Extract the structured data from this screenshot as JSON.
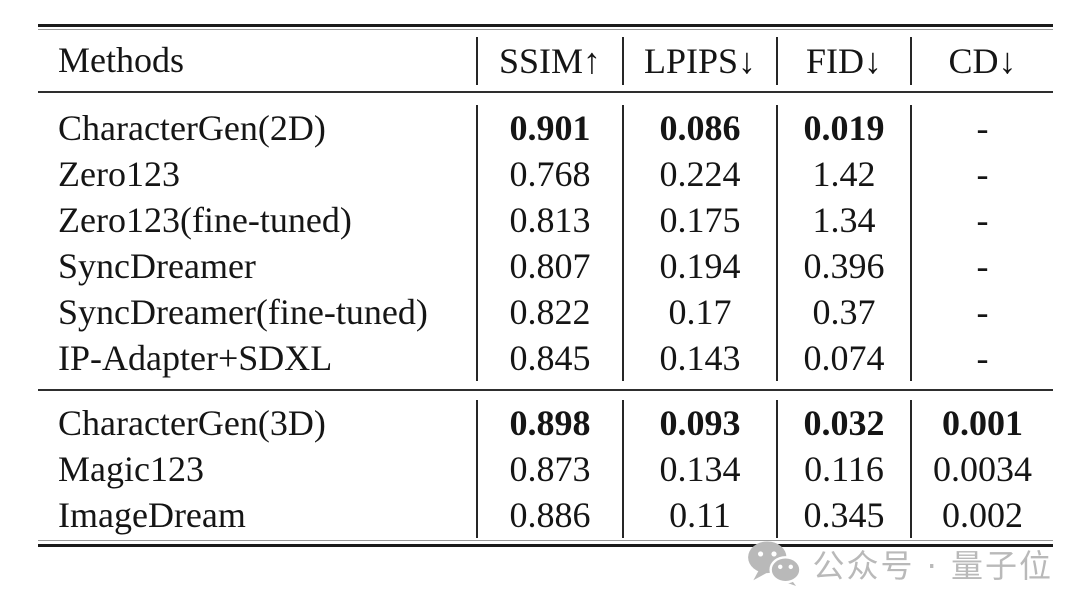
{
  "table": {
    "columns": [
      {
        "label": "Methods"
      },
      {
        "label": "SSIM↑"
      },
      {
        "label": "LPIPS↓"
      },
      {
        "label": "FID↓"
      },
      {
        "label": "CD↓"
      }
    ],
    "sections": [
      {
        "name": "2d-generation-methods",
        "rows": [
          {
            "method": "CharacterGen(2D)",
            "values": [
              "0.901",
              "0.086",
              "0.019",
              "-"
            ],
            "bold": true
          },
          {
            "method": "Zero123",
            "values": [
              "0.768",
              "0.224",
              "1.42",
              "-"
            ],
            "bold": false
          },
          {
            "method": "Zero123(fine-tuned)",
            "values": [
              "0.813",
              "0.175",
              "1.34",
              "-"
            ],
            "bold": false
          },
          {
            "method": "SyncDreamer",
            "values": [
              "0.807",
              "0.194",
              "0.396",
              "-"
            ],
            "bold": false
          },
          {
            "method": "SyncDreamer(fine-tuned)",
            "values": [
              "0.822",
              "0.17",
              "0.37",
              "-"
            ],
            "bold": false
          },
          {
            "method": "IP-Adapter+SDXL",
            "values": [
              "0.845",
              "0.143",
              "0.074",
              "-"
            ],
            "bold": false
          }
        ]
      },
      {
        "name": "3d-generation-methods",
        "rows": [
          {
            "method": "CharacterGen(3D)",
            "values": [
              "0.898",
              "0.093",
              "0.032",
              "0.001"
            ],
            "bold": true
          },
          {
            "method": "Magic123",
            "values": [
              "0.873",
              "0.134",
              "0.116",
              "0.0034"
            ],
            "bold": false
          },
          {
            "method": "ImageDream",
            "values": [
              "0.886",
              "0.11",
              "0.345",
              "0.002"
            ],
            "bold": false
          }
        ]
      }
    ]
  },
  "watermark": {
    "icon": "wechat-icon",
    "text": "公众号 · 量子位",
    "color": "#b9b9b9"
  },
  "colors": {
    "text": "#151515",
    "rule_heavy": "#1a1a1a",
    "rule_light": "#9a9a9a",
    "rule_mid": "#2e2e2e",
    "column_line": "#262626",
    "background": "#ffffff"
  }
}
